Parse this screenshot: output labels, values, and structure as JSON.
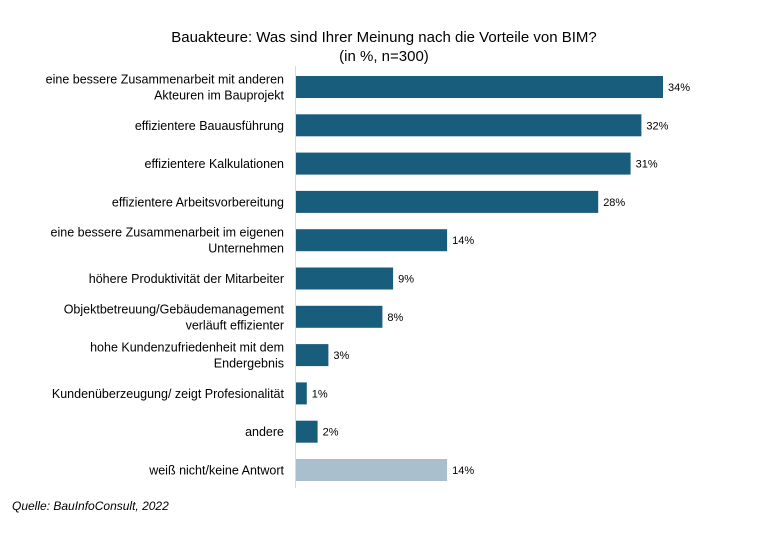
{
  "chart_data": {
    "type": "bar",
    "orientation": "horizontal",
    "title": "Bauakteure: Was sind Ihrer Meinung nach die Vorteile von BIM?",
    "subtitle": "(in %, n=300)",
    "categories": [
      [
        "eine bessere Zusammenarbeit mit anderen",
        "Akteuren im Bauprojekt"
      ],
      [
        "effizientere Bauausführung"
      ],
      [
        "effizientere Kalkulationen"
      ],
      [
        "effizientere Arbeitsvorbereitung"
      ],
      [
        "eine bessere Zusammenarbeit im eigenen",
        "Unternehmen"
      ],
      [
        "höhere Produktivität der Mitarbeiter"
      ],
      [
        "Objektbetreuung/Gebäudemanagement",
        "verläuft effizienter"
      ],
      [
        "hohe Kundenzufriedenheit mit dem",
        "Endergebnis"
      ],
      [
        "Kundenüberzeugung/ zeigt Profesionalität"
      ],
      [
        "andere"
      ],
      [
        "weiß nicht/keine Antwort"
      ]
    ],
    "values": [
      34,
      32,
      31,
      28,
      14,
      9,
      8,
      3,
      1,
      2,
      14
    ],
    "data_labels": [
      "34%",
      "32%",
      "31%",
      "28%",
      "14%",
      "9%",
      "8%",
      "3%",
      "1%",
      "2%",
      "14%"
    ],
    "bar_colors": [
      "#185e7c",
      "#185e7c",
      "#185e7c",
      "#185e7c",
      "#185e7c",
      "#185e7c",
      "#185e7c",
      "#185e7c",
      "#185e7c",
      "#185e7c",
      "#a9bfcd"
    ],
    "xlim": [
      0,
      34
    ],
    "grid": false,
    "legend": "none"
  },
  "source": "Quelle: BauInfoConsult, 2022"
}
